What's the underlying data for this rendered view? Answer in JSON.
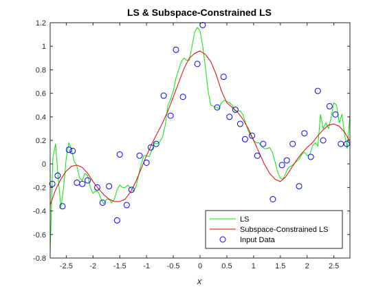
{
  "colors": {
    "ls": "#00e600",
    "constrained": "#e00000",
    "points": "#0000ff",
    "axis": "#262626",
    "background": "#ffffff"
  },
  "chart_data": {
    "type": "line",
    "title": "LS & Subspace-Constrained LS",
    "xlabel": "x",
    "ylabel": "",
    "xlim": [
      -2.8,
      2.8
    ],
    "ylim": [
      -0.8,
      1.2
    ],
    "xticks": [
      -2.5,
      -2,
      -1.5,
      -1,
      -0.5,
      0,
      0.5,
      1,
      1.5,
      2,
      2.5
    ],
    "xtick_labels": [
      "-2.5",
      "-2",
      "-1.5",
      "-1",
      "-0.5",
      "0",
      "0.5",
      "1",
      "1.5",
      "2",
      "2.5"
    ],
    "yticks": [
      -0.8,
      -0.6,
      -0.4,
      -0.2,
      0,
      0.2,
      0.4,
      0.6,
      0.8,
      1,
      1.2
    ],
    "ytick_labels": [
      "-0.8",
      "-0.6",
      "-0.4",
      "-0.2",
      "0",
      "0.2",
      "0.4",
      "0.6",
      "0.8",
      "1",
      "1.2"
    ],
    "grid": false,
    "legend_position": "bottom-right",
    "legend": [
      "LS",
      "Subspace-Constrained LS",
      "Input Data"
    ],
    "series": [
      {
        "name": "LS",
        "kind": "line",
        "x": [
          -2.8,
          -2.75,
          -2.7,
          -2.65,
          -2.6,
          -2.55,
          -2.5,
          -2.45,
          -2.4,
          -2.35,
          -2.3,
          -2.25,
          -2.2,
          -2.15,
          -2.1,
          -2.05,
          -2.0,
          -1.95,
          -1.9,
          -1.85,
          -1.8,
          -1.75,
          -1.7,
          -1.65,
          -1.6,
          -1.55,
          -1.5,
          -1.45,
          -1.4,
          -1.35,
          -1.3,
          -1.25,
          -1.2,
          -1.15,
          -1.1,
          -1.05,
          -1.0,
          -0.95,
          -0.9,
          -0.85,
          -0.8,
          -0.75,
          -0.7,
          -0.65,
          -0.6,
          -0.55,
          -0.5,
          -0.45,
          -0.4,
          -0.35,
          -0.3,
          -0.25,
          -0.2,
          -0.15,
          -0.1,
          -0.05,
          0.0,
          0.05,
          0.1,
          0.15,
          0.2,
          0.25,
          0.3,
          0.35,
          0.4,
          0.45,
          0.5,
          0.55,
          0.6,
          0.65,
          0.7,
          0.75,
          0.8,
          0.85,
          0.9,
          0.95,
          1.0,
          1.05,
          1.1,
          1.15,
          1.2,
          1.25,
          1.3,
          1.35,
          1.4,
          1.45,
          1.5,
          1.55,
          1.6,
          1.65,
          1.7,
          1.75,
          1.8,
          1.85,
          1.9,
          1.95,
          2.0,
          2.05,
          2.1,
          2.15,
          2.2,
          2.25,
          2.3,
          2.35,
          2.4,
          2.45,
          2.5,
          2.55,
          2.6,
          2.65,
          2.7,
          2.75,
          2.8
        ],
        "y": [
          -0.75,
          0.05,
          0.17,
          -0.12,
          -0.37,
          -0.2,
          0.05,
          0.18,
          0.12,
          0.02,
          -0.02,
          -0.12,
          -0.14,
          -0.08,
          -0.1,
          -0.2,
          -0.25,
          -0.23,
          -0.24,
          -0.3,
          -0.34,
          -0.3,
          -0.3,
          -0.33,
          -0.3,
          -0.22,
          -0.18,
          -0.2,
          -0.2,
          -0.18,
          -0.2,
          -0.23,
          -0.2,
          -0.1,
          0.0,
          0.07,
          0.07,
          0.06,
          0.12,
          0.18,
          0.17,
          0.19,
          0.23,
          0.33,
          0.5,
          0.55,
          0.62,
          0.73,
          0.8,
          0.87,
          0.9,
          0.88,
          0.88,
          1.0,
          1.12,
          1.16,
          1.13,
          1.0,
          0.82,
          0.62,
          0.5,
          0.49,
          0.48,
          0.47,
          0.52,
          0.54,
          0.53,
          0.52,
          0.5,
          0.45,
          0.45,
          0.45,
          0.42,
          0.35,
          0.28,
          0.24,
          0.2,
          0.18,
          0.18,
          0.15,
          0.13,
          0.13,
          0.14,
          0.1,
          0.02,
          -0.07,
          -0.12,
          -0.13,
          -0.08,
          -0.03,
          -0.02,
          0.0,
          0.02,
          0.04,
          0.08,
          0.1,
          0.07,
          0.08,
          0.15,
          0.18,
          0.15,
          0.42,
          0.3,
          0.35,
          0.3,
          0.4,
          0.52,
          0.5,
          0.35,
          0.42,
          0.25,
          0.13,
          0.42
        ]
      },
      {
        "name": "Subspace-Constrained LS",
        "kind": "line",
        "x": [
          -2.8,
          -2.7,
          -2.6,
          -2.5,
          -2.4,
          -2.3,
          -2.2,
          -2.1,
          -2.0,
          -1.9,
          -1.8,
          -1.7,
          -1.6,
          -1.5,
          -1.4,
          -1.3,
          -1.2,
          -1.1,
          -1.0,
          -0.9,
          -0.8,
          -0.7,
          -0.6,
          -0.5,
          -0.4,
          -0.3,
          -0.2,
          -0.1,
          0.0,
          0.1,
          0.2,
          0.3,
          0.4,
          0.5,
          0.6,
          0.7,
          0.8,
          0.9,
          1.0,
          1.1,
          1.2,
          1.3,
          1.4,
          1.5,
          1.6,
          1.7,
          1.8,
          1.9,
          2.0,
          2.1,
          2.2,
          2.3,
          2.4,
          2.5,
          2.6,
          2.7,
          2.8
        ],
        "y": [
          -0.35,
          -0.22,
          -0.13,
          -0.06,
          -0.02,
          -0.01,
          -0.03,
          -0.08,
          -0.15,
          -0.21,
          -0.26,
          -0.3,
          -0.32,
          -0.32,
          -0.3,
          -0.24,
          -0.15,
          -0.04,
          0.07,
          0.17,
          0.26,
          0.35,
          0.45,
          0.57,
          0.69,
          0.81,
          0.9,
          0.94,
          0.96,
          0.93,
          0.87,
          0.76,
          0.62,
          0.52,
          0.48,
          0.44,
          0.38,
          0.3,
          0.2,
          0.1,
          -0.0,
          -0.08,
          -0.13,
          -0.15,
          -0.11,
          -0.04,
          0.03,
          0.09,
          0.14,
          0.18,
          0.24,
          0.29,
          0.33,
          0.34,
          0.32,
          0.27,
          0.19
        ]
      },
      {
        "name": "Input Data",
        "kind": "scatter",
        "x": [
          -2.76,
          -2.66,
          -2.57,
          -2.45,
          -2.38,
          -2.3,
          -2.2,
          -2.1,
          -1.92,
          -1.82,
          -1.7,
          -1.55,
          -1.5,
          -1.37,
          -1.28,
          -1.13,
          -1.0,
          -0.92,
          -0.82,
          -0.68,
          -0.55,
          -0.45,
          -0.32,
          -0.05,
          0.05,
          0.32,
          0.44,
          0.55,
          0.66,
          0.75,
          0.84,
          0.97,
          1.07,
          1.18,
          1.36,
          1.53,
          1.62,
          1.73,
          1.85,
          1.95,
          2.07,
          2.2,
          2.3,
          2.42,
          2.53,
          2.63,
          2.74
        ],
        "y": [
          -0.17,
          -0.1,
          -0.36,
          0.12,
          0.11,
          -0.16,
          -0.17,
          -0.14,
          -0.2,
          -0.33,
          -0.19,
          -0.48,
          0.08,
          -0.35,
          -0.22,
          0.07,
          0.01,
          0.14,
          0.17,
          0.58,
          0.41,
          0.97,
          0.57,
          0.85,
          1.18,
          0.48,
          0.74,
          0.4,
          0.46,
          0.34,
          0.21,
          0.24,
          0.07,
          0.17,
          -0.3,
          -0.01,
          0.03,
          0.17,
          -0.19,
          0.26,
          0.06,
          0.62,
          0.2,
          0.49,
          0.42,
          0.17,
          0.17
        ]
      }
    ]
  }
}
